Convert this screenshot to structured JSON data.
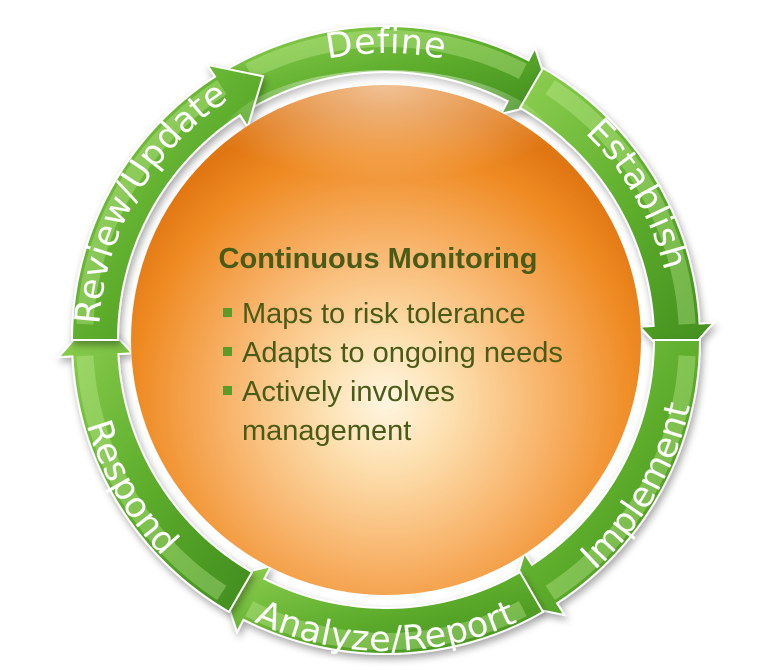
{
  "center": {
    "title": "Continuous Monitoring",
    "bullets": [
      "Maps to risk tolerance",
      "Adapts to ongoing needs",
      "Actively involves",
      "management"
    ]
  },
  "stages": [
    {
      "label": "Define"
    },
    {
      "label": "Establish"
    },
    {
      "label": "Implement"
    },
    {
      "label": "Analyze/Report"
    },
    {
      "label": "Respond"
    },
    {
      "label": "Review/Update"
    }
  ],
  "colors": {
    "ring_green": "#6bb53a",
    "ring_green_dark": "#3f8a1f",
    "ring_green_light": "#a5dc6e",
    "sphere_orange": "#f08a1c",
    "sphere_highlight": "#fff4dc",
    "text_olive": "#4a5a17",
    "bullet_green": "#5e9a2a"
  }
}
